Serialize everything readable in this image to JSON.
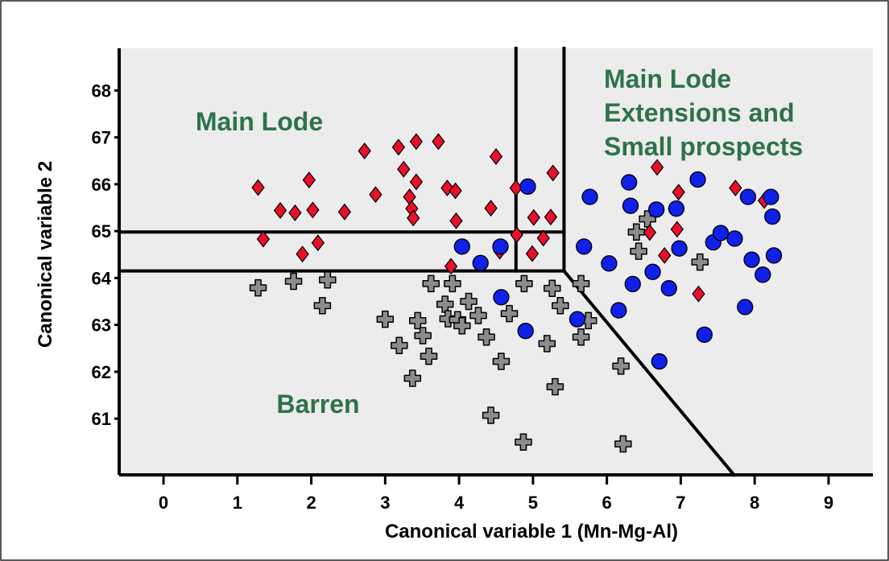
{
  "colors": {
    "plot_bg": "#ececec",
    "region_text": "#2e7348",
    "main_lode": "#e8102a",
    "extensions": "#1020e8",
    "barren": "#8c8c8c"
  },
  "chart_data": {
    "type": "scatter",
    "xlabel": "Canonical variable 1  (Mn-Mg-Al)",
    "ylabel": "Canonical variable  2",
    "xlim": [
      -0.6,
      9.6
    ],
    "ylim": [
      59.8,
      68.9
    ],
    "xticks": [
      0,
      1,
      2,
      3,
      4,
      5,
      6,
      7,
      8,
      9
    ],
    "yticks": [
      61,
      62,
      63,
      64,
      65,
      66,
      67,
      68
    ],
    "xtick_labels": [
      "0",
      "1",
      "2",
      "3",
      "4",
      "5",
      "6",
      "7",
      "8",
      "9"
    ],
    "ytick_labels": [
      "61",
      "62",
      "63",
      "64",
      "65",
      "66",
      "67",
      "68"
    ],
    "grid": false,
    "region_labels": [
      {
        "name": "main_lode",
        "lines": [
          "Main Lode"
        ]
      },
      {
        "name": "extensions",
        "lines": [
          "Main Lode",
          "Extensions and",
          "Small prospects"
        ]
      },
      {
        "name": "barren",
        "lines": [
          "Barren"
        ]
      }
    ],
    "boundaries": [
      {
        "x": [
          4.77,
          4.77
        ],
        "y": [
          64.15,
          68.9
        ]
      },
      {
        "x": [
          5.42,
          5.42
        ],
        "y": [
          64.15,
          68.9
        ]
      },
      {
        "x": [
          -0.6,
          5.42
        ],
        "y": [
          64.98,
          64.98
        ]
      },
      {
        "x": [
          -0.6,
          5.42
        ],
        "y": [
          64.15,
          64.15
        ]
      },
      {
        "x": [
          5.42,
          7.72
        ],
        "y": [
          64.15,
          59.8
        ]
      }
    ],
    "series": [
      {
        "marker": "diamond",
        "points": [
          [
            1.28,
            65.93
          ],
          [
            1.35,
            64.83
          ],
          [
            1.58,
            65.44
          ],
          [
            1.78,
            65.39
          ],
          [
            1.88,
            64.51
          ],
          [
            1.97,
            66.09
          ],
          [
            2.02,
            65.45
          ],
          [
            2.09,
            64.75
          ],
          [
            2.45,
            65.41
          ],
          [
            2.72,
            66.71
          ],
          [
            2.87,
            65.78
          ],
          [
            3.18,
            66.79
          ],
          [
            3.25,
            66.32
          ],
          [
            3.33,
            65.73
          ],
          [
            3.36,
            65.48
          ],
          [
            3.38,
            65.28
          ],
          [
            3.42,
            66.91
          ],
          [
            3.42,
            66.05
          ],
          [
            3.72,
            66.91
          ],
          [
            3.84,
            65.92
          ],
          [
            3.89,
            64.25
          ],
          [
            3.95,
            65.86
          ],
          [
            3.96,
            65.22
          ],
          [
            4.43,
            65.49
          ],
          [
            4.5,
            66.59
          ],
          [
            4.55,
            64.57
          ],
          [
            4.78,
            64.92
          ],
          [
            4.77,
            65.92
          ],
          [
            4.99,
            64.52
          ],
          [
            5.01,
            65.29
          ],
          [
            5.14,
            64.85
          ],
          [
            5.24,
            65.3
          ],
          [
            5.27,
            66.24
          ],
          [
            6.58,
            64.97
          ],
          [
            6.68,
            66.36
          ],
          [
            6.78,
            64.48
          ],
          [
            6.95,
            65.04
          ],
          [
            6.97,
            65.83
          ],
          [
            7.24,
            63.66
          ],
          [
            7.74,
            65.92
          ],
          [
            8.13,
            65.65
          ]
        ]
      },
      {
        "marker": "circle",
        "points": [
          [
            4.04,
            64.67
          ],
          [
            4.29,
            64.32
          ],
          [
            4.56,
            64.67
          ],
          [
            4.57,
            63.59
          ],
          [
            4.9,
            62.87
          ],
          [
            4.93,
            65.95
          ],
          [
            5.6,
            63.12
          ],
          [
            5.69,
            64.67
          ],
          [
            5.77,
            65.73
          ],
          [
            6.03,
            64.31
          ],
          [
            6.16,
            63.31
          ],
          [
            6.3,
            66.04
          ],
          [
            6.32,
            65.54
          ],
          [
            6.35,
            63.87
          ],
          [
            6.62,
            64.13
          ],
          [
            6.67,
            65.46
          ],
          [
            6.71,
            62.22
          ],
          [
            6.84,
            63.78
          ],
          [
            6.94,
            65.48
          ],
          [
            6.98,
            64.63
          ],
          [
            7.23,
            66.1
          ],
          [
            7.32,
            62.79
          ],
          [
            7.44,
            64.76
          ],
          [
            7.54,
            64.96
          ],
          [
            7.73,
            64.84
          ],
          [
            7.87,
            63.38
          ],
          [
            7.91,
            65.73
          ],
          [
            7.96,
            64.39
          ],
          [
            8.11,
            64.07
          ],
          [
            8.22,
            65.73
          ],
          [
            8.24,
            65.31
          ],
          [
            8.26,
            64.48
          ]
        ]
      },
      {
        "marker": "cross",
        "points": [
          [
            1.28,
            63.79
          ],
          [
            1.76,
            63.93
          ],
          [
            2.15,
            63.41
          ],
          [
            2.22,
            63.96
          ],
          [
            3.0,
            63.12
          ],
          [
            3.19,
            62.56
          ],
          [
            3.37,
            61.86
          ],
          [
            3.44,
            63.09
          ],
          [
            3.51,
            62.77
          ],
          [
            3.59,
            62.33
          ],
          [
            3.62,
            63.88
          ],
          [
            3.81,
            63.44
          ],
          [
            3.85,
            63.13
          ],
          [
            3.91,
            63.88
          ],
          [
            3.98,
            63.11
          ],
          [
            4.04,
            62.98
          ],
          [
            4.13,
            63.5
          ],
          [
            4.26,
            63.2
          ],
          [
            4.37,
            62.74
          ],
          [
            4.43,
            61.07
          ],
          [
            4.57,
            62.22
          ],
          [
            4.68,
            63.24
          ],
          [
            4.87,
            60.5
          ],
          [
            4.88,
            63.88
          ],
          [
            5.19,
            62.6
          ],
          [
            5.26,
            63.78
          ],
          [
            5.3,
            61.68
          ],
          [
            5.37,
            63.41
          ],
          [
            5.65,
            63.88
          ],
          [
            5.65,
            62.74
          ],
          [
            5.75,
            63.09
          ],
          [
            6.19,
            62.12
          ],
          [
            6.22,
            60.46
          ],
          [
            6.4,
            64.98
          ],
          [
            6.43,
            64.57
          ],
          [
            6.55,
            65.26
          ],
          [
            7.26,
            64.34
          ]
        ]
      }
    ]
  }
}
